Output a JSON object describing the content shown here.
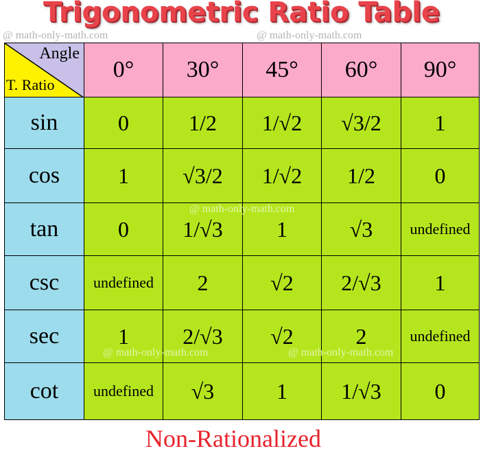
{
  "title": "Trigonometric Ratio Table",
  "watermark": "@ math-only-math.com",
  "corner": {
    "angle_label": "Angle",
    "ratio_label": "T. Ratio"
  },
  "angles": [
    "0°",
    "30°",
    "45°",
    "60°",
    "90°"
  ],
  "rows": [
    {
      "fn": "sin",
      "values": [
        "0",
        "1/2",
        "1/√2",
        "√3/2",
        "1"
      ]
    },
    {
      "fn": "cos",
      "values": [
        "1",
        "√3/2",
        "1/√2",
        "1/2",
        "0"
      ]
    },
    {
      "fn": "tan",
      "values": [
        "0",
        "1/√3",
        "1",
        "√3",
        "undefined"
      ]
    },
    {
      "fn": "csc",
      "values": [
        "undefined",
        "2",
        "√2",
        "2/√3",
        "1"
      ]
    },
    {
      "fn": "sec",
      "values": [
        "1",
        "2/√3",
        "√2",
        "2",
        "undefined"
      ]
    },
    {
      "fn": "cot",
      "values": [
        "undefined",
        "√3",
        "1",
        "1/√3",
        "0"
      ]
    }
  ],
  "footer": "Non-Rationalized",
  "colors": {
    "header": "#fbaac8",
    "corner_top": "#c8c0e8",
    "corner_bottom": "#fff200",
    "function_column": "#9ddcec",
    "values": "#b5e61d",
    "title": "#e8434b",
    "footer": "#e8232b"
  }
}
